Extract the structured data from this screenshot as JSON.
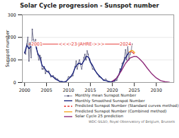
{
  "chart_data": {
    "type": "line",
    "title": "Solar Cycle progression - Sunspot number",
    "y_label": "Sunspot number",
    "xlim": [
      1999.5,
      2034
    ],
    "xticks": [
      2000,
      2005,
      2010,
      2015,
      2020,
      2025,
      2030
    ],
    "ylim": [
      0,
      300
    ],
    "yticks": [
      0,
      100,
      200,
      300
    ],
    "grid": true,
    "legend": "bottom",
    "series": [
      {
        "name": "Monthly mean Sunspot Number",
        "color": "#5a5a7a",
        "marker": "circle",
        "line_style": "solid",
        "x": [
          2000.0,
          2000.25,
          2000.5,
          2000.75,
          2001.0,
          2001.25,
          2001.5,
          2001.75,
          2002.0,
          2002.25,
          2002.5,
          2002.75,
          2003.0,
          2003.25,
          2003.5,
          2003.75,
          2004.0,
          2004.25,
          2004.5,
          2004.75,
          2005.0,
          2005.5,
          2006.0,
          2006.5,
          2007.0,
          2007.5,
          2008.0,
          2008.5,
          2009.0,
          2009.5,
          2010.0,
          2010.5,
          2011.0,
          2011.5,
          2011.75,
          2012.0,
          2012.25,
          2012.5,
          2012.75,
          2013.0,
          2013.5,
          2013.75,
          2014.0,
          2014.25,
          2014.5,
          2014.75,
          2015.0,
          2015.5,
          2016.0,
          2016.5,
          2017.0,
          2017.5,
          2018.0,
          2018.5,
          2019.0,
          2019.5,
          2020.0,
          2020.5,
          2021.0,
          2021.5,
          2021.75,
          2022.0,
          2022.25,
          2022.5,
          2022.75,
          2023.0,
          2023.25,
          2023.5,
          2023.75,
          2024.0,
          2024.25,
          2024.5
        ],
        "values": [
          133,
          126,
          170,
          200,
          95,
          177,
          110,
          236,
          190,
          175,
          190,
          150,
          125,
          100,
          120,
          110,
          60,
          60,
          70,
          40,
          50,
          50,
          25,
          30,
          20,
          15,
          5,
          3,
          2,
          5,
          25,
          25,
          30,
          70,
          95,
          60,
          85,
          100,
          80,
          60,
          110,
          125,
          100,
          140,
          125,
          100,
          90,
          60,
          55,
          40,
          25,
          20,
          10,
          15,
          5,
          2,
          6,
          6,
          10,
          35,
          60,
          55,
          85,
          90,
          110,
          145,
          100,
          160,
          100,
          125,
          135,
          170
        ]
      },
      {
        "name": "Monthly Smoothed Sunspot Number",
        "color": "#1a237e",
        "line_style": "solid",
        "x": [
          2000.0,
          2000.5,
          2001.0,
          2001.5,
          2001.9,
          2002.5,
          2003.0,
          2003.5,
          2004.0,
          2004.5,
          2005.0,
          2005.5,
          2006.0,
          2006.5,
          2007.0,
          2007.5,
          2008.0,
          2008.5,
          2008.9,
          2009.5,
          2010.0,
          2010.5,
          2011.0,
          2011.5,
          2012.0,
          2012.5,
          2013.0,
          2013.5,
          2014.0,
          2014.3,
          2014.8,
          2015.0,
          2015.5,
          2016.0,
          2016.5,
          2017.0,
          2017.5,
          2018.0,
          2018.5,
          2019.0,
          2019.5,
          2019.9,
          2020.5,
          2021.0,
          2021.5,
          2022.0,
          2022.5,
          2023.0,
          2023.5,
          2023.9
        ],
        "values": [
          130,
          165,
          150,
          160,
          180,
          165,
          130,
          110,
          75,
          65,
          50,
          45,
          30,
          25,
          15,
          10,
          5,
          4,
          2,
          5,
          15,
          25,
          40,
          65,
          80,
          85,
          80,
          95,
          115,
          116,
          105,
          90,
          75,
          55,
          40,
          30,
          20,
          10,
          8,
          5,
          3,
          2,
          8,
          20,
          35,
          60,
          85,
          110,
          125,
          135
        ]
      },
      {
        "name": "Predicted Sunspot Number (Standard curves method)",
        "color": "#e53935",
        "line_style": "dashed",
        "x": [
          2023.9,
          2024.2,
          2024.5,
          2024.8,
          2025.1
        ],
        "values": [
          135,
          138,
          135,
          130,
          124
        ]
      },
      {
        "name": "Predicted Sunspot Number (Combined method)",
        "color": "#f5a623",
        "line_style": "solid",
        "x": [
          2023.9,
          2024.2,
          2024.5,
          2024.8,
          2025.1
        ],
        "values": [
          135,
          140,
          142,
          138,
          132
        ]
      },
      {
        "name": "Solar Cycle 25 prediction",
        "color": "#8e2a7a",
        "line_style": "solid",
        "x": [
          2020.0,
          2021.0,
          2022.0,
          2023.0,
          2024.0,
          2025.0,
          2025.5,
          2026.0,
          2027.0,
          2028.0,
          2029.0,
          2030.0,
          2031.0,
          2032.0,
          2033.0
        ],
        "values": [
          5,
          20,
          50,
          85,
          108,
          116,
          115,
          108,
          88,
          62,
          38,
          20,
          8,
          3,
          1
        ]
      }
    ],
    "annotations": [
      {
        "type": "line",
        "x": [
          2001,
          2024
        ],
        "y": [
          170,
          170
        ],
        "color": "#e53935"
      },
      {
        "type": "text",
        "text": "2001",
        "x": 2002.8,
        "y": 170,
        "color": "#e53935"
      },
      {
        "type": "text",
        "text": "<<< 23 JAHRE >>>",
        "x": 2013,
        "y": 170,
        "color": "#e53935"
      },
      {
        "type": "text",
        "text": "2024",
        "x": 2023,
        "y": 170,
        "color": "#e53935"
      }
    ],
    "credit": "WDC-SILSO, Royal Observatory of Belgium, Brussels"
  }
}
